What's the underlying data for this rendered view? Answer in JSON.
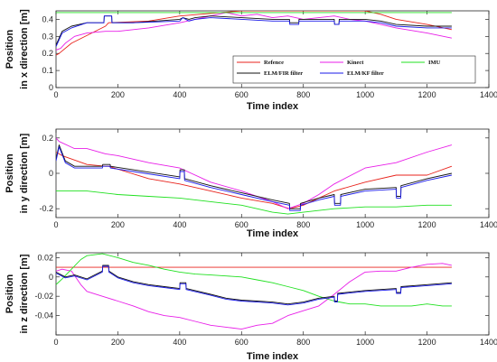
{
  "chart_data": [
    {
      "type": "line",
      "xlabel": "Time index",
      "ylabel_lines": [
        "Position",
        "in x direction [m]"
      ],
      "xlim": [
        0,
        1400
      ],
      "ylim": [
        0,
        0.45
      ],
      "xticks": [
        0,
        200,
        400,
        600,
        800,
        1000,
        1200,
        1400
      ],
      "yticks": [
        0,
        0.1,
        0.2,
        0.3,
        0.4
      ],
      "ytick_labels": [
        "0",
        "0.1",
        "0.2",
        "0.3",
        "0.4"
      ],
      "legend_position": "bottom-right",
      "series": [
        {
          "name": "Refence",
          "color": "#e8231c",
          "x": [
            0,
            10,
            50,
            160,
            170,
            300,
            400,
            600,
            700,
            800,
            900,
            1000,
            1050,
            1100,
            1200,
            1280
          ],
          "y": [
            0.19,
            0.2,
            0.26,
            0.36,
            0.38,
            0.39,
            0.42,
            0.45,
            0.45,
            0.45,
            0.45,
            0.45,
            0.43,
            0.4,
            0.37,
            0.34
          ]
        },
        {
          "name": "Kinect",
          "color": "#e81ee8",
          "x": [
            0,
            15,
            30,
            60,
            100,
            160,
            200,
            300,
            400,
            450,
            500,
            550,
            600,
            650,
            700,
            750,
            800,
            850,
            900,
            950,
            1000,
            1050,
            1100,
            1200,
            1280
          ],
          "y": [
            0.22,
            0.23,
            0.26,
            0.3,
            0.32,
            0.33,
            0.33,
            0.35,
            0.38,
            0.4,
            0.42,
            0.44,
            0.42,
            0.43,
            0.41,
            0.42,
            0.4,
            0.41,
            0.42,
            0.4,
            0.39,
            0.37,
            0.35,
            0.32,
            0.29
          ]
        },
        {
          "name": "IMU",
          "color": "#20e020",
          "x": [
            0,
            100,
            200,
            300,
            400,
            500,
            600,
            700,
            800,
            900,
            1000,
            1100,
            1200,
            1280
          ],
          "y": [
            0.44,
            0.44,
            0.44,
            0.44,
            0.44,
            0.44,
            0.44,
            0.44,
            0.44,
            0.44,
            0.44,
            0.44,
            0.44,
            0.44
          ]
        },
        {
          "name": "ELM/FIR filter",
          "color": "#111111",
          "x": [
            0,
            20,
            50,
            100,
            155,
            156,
            180,
            181,
            250,
            400,
            410,
            430,
            450,
            500,
            600,
            700,
            755,
            756,
            785,
            786,
            850,
            900,
            901,
            915,
            916,
            1000,
            1050,
            1100,
            1200,
            1280
          ],
          "y": [
            0.25,
            0.33,
            0.36,
            0.38,
            0.38,
            0.42,
            0.42,
            0.38,
            0.38,
            0.4,
            0.41,
            0.4,
            0.41,
            0.42,
            0.41,
            0.4,
            0.4,
            0.38,
            0.38,
            0.4,
            0.4,
            0.4,
            0.37,
            0.37,
            0.4,
            0.4,
            0.39,
            0.37,
            0.36,
            0.36
          ]
        },
        {
          "name": "ELM/KF filter",
          "color": "#1a1ae8",
          "x": [
            0,
            20,
            50,
            100,
            155,
            156,
            180,
            181,
            250,
            400,
            410,
            430,
            450,
            500,
            600,
            700,
            755,
            756,
            785,
            786,
            850,
            900,
            901,
            915,
            916,
            1000,
            1050,
            1100,
            1200,
            1280
          ],
          "y": [
            0.24,
            0.32,
            0.35,
            0.38,
            0.38,
            0.42,
            0.42,
            0.38,
            0.38,
            0.39,
            0.41,
            0.39,
            0.4,
            0.41,
            0.4,
            0.39,
            0.39,
            0.37,
            0.37,
            0.39,
            0.39,
            0.39,
            0.37,
            0.37,
            0.39,
            0.39,
            0.38,
            0.36,
            0.35,
            0.35
          ]
        }
      ],
      "legend_rows": [
        [
          "Refence",
          "Kinect",
          "IMU"
        ],
        [
          "ELM/FIR filter",
          "ELM/KF filter"
        ]
      ]
    },
    {
      "type": "line",
      "xlabel": "Time index",
      "ylabel_lines": [
        "Position",
        "in y direction [m]"
      ],
      "xlim": [
        0,
        1400
      ],
      "ylim": [
        -0.25,
        0.25
      ],
      "xticks": [
        0,
        200,
        400,
        600,
        800,
        1000,
        1200,
        1400
      ],
      "yticks": [
        -0.2,
        0,
        0.2
      ],
      "ytick_labels": [
        "-0.2",
        "0",
        "0.2"
      ],
      "series": [
        {
          "name": "Refence",
          "color": "#e8231c",
          "x": [
            0,
            20,
            100,
            160,
            170,
            300,
            400,
            500,
            600,
            700,
            755,
            800,
            900,
            1000,
            1100,
            1200,
            1280
          ],
          "y": [
            0.12,
            0.1,
            0.05,
            0.04,
            0.04,
            -0.03,
            -0.06,
            -0.1,
            -0.14,
            -0.17,
            -0.2,
            -0.18,
            -0.1,
            -0.05,
            -0.01,
            -0.01,
            0.04
          ]
        },
        {
          "name": "Kinect",
          "color": "#e81ee8",
          "x": [
            0,
            10,
            60,
            100,
            160,
            200,
            300,
            400,
            500,
            600,
            700,
            750,
            800,
            850,
            900,
            1000,
            1100,
            1200,
            1280
          ],
          "y": [
            0.2,
            0.18,
            0.14,
            0.14,
            0.11,
            0.1,
            0.06,
            0.03,
            -0.05,
            -0.1,
            -0.16,
            -0.2,
            -0.17,
            -0.12,
            -0.06,
            0.03,
            0.06,
            0.12,
            0.16
          ]
        },
        {
          "name": "IMU",
          "color": "#20e020",
          "x": [
            0,
            50,
            100,
            200,
            300,
            400,
            500,
            600,
            700,
            750,
            800,
            900,
            1000,
            1100,
            1200,
            1280
          ],
          "y": [
            -0.1,
            -0.1,
            -0.1,
            -0.12,
            -0.13,
            -0.14,
            -0.16,
            -0.18,
            -0.22,
            -0.23,
            -0.22,
            -0.2,
            -0.19,
            -0.19,
            -0.18,
            -0.18
          ]
        },
        {
          "name": "ELM/FIR filter",
          "color": "#111111",
          "x": [
            0,
            10,
            30,
            60,
            150,
            151,
            175,
            176,
            250,
            400,
            401,
            415,
            416,
            500,
            600,
            700,
            755,
            756,
            790,
            791,
            850,
            900,
            901,
            920,
            921,
            1000,
            1100,
            1101,
            1115,
            1116,
            1200,
            1280
          ],
          "y": [
            0.08,
            0.16,
            0.07,
            0.04,
            0.04,
            0.05,
            0.05,
            0.04,
            0.02,
            -0.02,
            0.02,
            0.02,
            -0.03,
            -0.07,
            -0.11,
            -0.15,
            -0.17,
            -0.2,
            -0.2,
            -0.17,
            -0.14,
            -0.12,
            -0.17,
            -0.17,
            -0.12,
            -0.09,
            -0.08,
            -0.13,
            -0.13,
            -0.07,
            -0.03,
            0.0
          ]
        },
        {
          "name": "ELM/KF filter",
          "color": "#1a1ae8",
          "x": [
            0,
            10,
            30,
            60,
            150,
            151,
            175,
            176,
            250,
            400,
            401,
            415,
            416,
            500,
            600,
            700,
            755,
            756,
            790,
            791,
            850,
            900,
            901,
            920,
            921,
            1000,
            1100,
            1101,
            1115,
            1116,
            1200,
            1280
          ],
          "y": [
            0.07,
            0.15,
            0.06,
            0.03,
            0.03,
            0.04,
            0.04,
            0.03,
            0.01,
            -0.03,
            0.01,
            0.01,
            -0.04,
            -0.08,
            -0.12,
            -0.16,
            -0.18,
            -0.21,
            -0.21,
            -0.18,
            -0.15,
            -0.13,
            -0.18,
            -0.18,
            -0.13,
            -0.1,
            -0.09,
            -0.14,
            -0.14,
            -0.08,
            -0.04,
            -0.01
          ]
        }
      ]
    },
    {
      "type": "line",
      "xlabel": "Time index",
      "ylabel_lines": [
        "Position",
        "in z direction [m]"
      ],
      "xlim": [
        0,
        1400
      ],
      "ylim": [
        -0.06,
        0.025
      ],
      "xticks": [
        0,
        200,
        400,
        600,
        800,
        1000,
        1200,
        1400
      ],
      "yticks": [
        -0.06,
        -0.04,
        -0.02,
        0,
        0.02
      ],
      "ytick_labels": [
        "",
        "-0.04",
        "-0.02",
        "0",
        "0.02"
      ],
      "series": [
        {
          "name": "Refence",
          "color": "#e8231c",
          "x": [
            0,
            1280
          ],
          "y": [
            0.01,
            0.01
          ]
        },
        {
          "name": "Kinect",
          "color": "#e81ee8",
          "x": [
            0,
            20,
            50,
            80,
            100,
            150,
            200,
            250,
            300,
            350,
            400,
            450,
            500,
            550,
            600,
            650,
            700,
            750,
            800,
            850,
            900,
            950,
            1000,
            1050,
            1100,
            1150,
            1200,
            1250,
            1280
          ],
          "y": [
            0.006,
            0.008,
            0.006,
            -0.008,
            -0.015,
            -0.02,
            -0.025,
            -0.03,
            -0.036,
            -0.04,
            -0.042,
            -0.046,
            -0.05,
            -0.052,
            -0.054,
            -0.05,
            -0.048,
            -0.04,
            -0.035,
            -0.03,
            -0.018,
            -0.005,
            0.005,
            0.006,
            0.006,
            0.01,
            0.013,
            0.014,
            0.012
          ]
        },
        {
          "name": "IMU",
          "color": "#20e020",
          "x": [
            0,
            20,
            50,
            80,
            100,
            150,
            200,
            250,
            300,
            350,
            400,
            450,
            500,
            550,
            600,
            650,
            700,
            750,
            800,
            850,
            900,
            950,
            1000,
            1050,
            1100,
            1150,
            1200,
            1250,
            1280
          ],
          "y": [
            -0.008,
            -0.002,
            0.008,
            0.018,
            0.022,
            0.024,
            0.02,
            0.015,
            0.012,
            0.008,
            0.005,
            0.003,
            0.002,
            0.001,
            0.0,
            -0.003,
            -0.006,
            -0.01,
            -0.014,
            -0.02,
            -0.025,
            -0.028,
            -0.028,
            -0.03,
            -0.03,
            -0.03,
            -0.028,
            -0.03,
            -0.03
          ]
        },
        {
          "name": "ELM/FIR filter",
          "color": "#111111",
          "x": [
            0,
            30,
            60,
            100,
            150,
            151,
            170,
            171,
            200,
            250,
            300,
            350,
            400,
            401,
            420,
            421,
            500,
            550,
            600,
            650,
            700,
            750,
            800,
            850,
            900,
            901,
            910,
            911,
            1000,
            1100,
            1101,
            1115,
            1116,
            1200,
            1280
          ],
          "y": [
            0.005,
            0.0,
            0.002,
            -0.002,
            0.006,
            0.012,
            0.012,
            0.006,
            0.0,
            -0.005,
            -0.008,
            -0.01,
            -0.012,
            -0.006,
            -0.006,
            -0.012,
            -0.018,
            -0.022,
            -0.024,
            -0.025,
            -0.026,
            -0.028,
            -0.026,
            -0.022,
            -0.02,
            -0.025,
            -0.025,
            -0.017,
            -0.014,
            -0.012,
            -0.016,
            -0.016,
            -0.01,
            -0.008,
            -0.006
          ]
        },
        {
          "name": "ELM/KF filter",
          "color": "#1a1ae8",
          "x": [
            0,
            30,
            60,
            100,
            150,
            151,
            170,
            171,
            200,
            250,
            300,
            350,
            400,
            401,
            420,
            421,
            500,
            550,
            600,
            650,
            700,
            750,
            800,
            850,
            900,
            901,
            910,
            911,
            1000,
            1100,
            1101,
            1115,
            1116,
            1200,
            1280
          ],
          "y": [
            0.004,
            -0.001,
            0.001,
            -0.003,
            0.005,
            0.011,
            0.011,
            0.005,
            -0.001,
            -0.006,
            -0.009,
            -0.011,
            -0.013,
            -0.007,
            -0.007,
            -0.013,
            -0.019,
            -0.023,
            -0.025,
            -0.026,
            -0.027,
            -0.029,
            -0.027,
            -0.023,
            -0.021,
            -0.026,
            -0.026,
            -0.018,
            -0.015,
            -0.013,
            -0.017,
            -0.017,
            -0.011,
            -0.009,
            -0.007
          ]
        }
      ]
    }
  ]
}
